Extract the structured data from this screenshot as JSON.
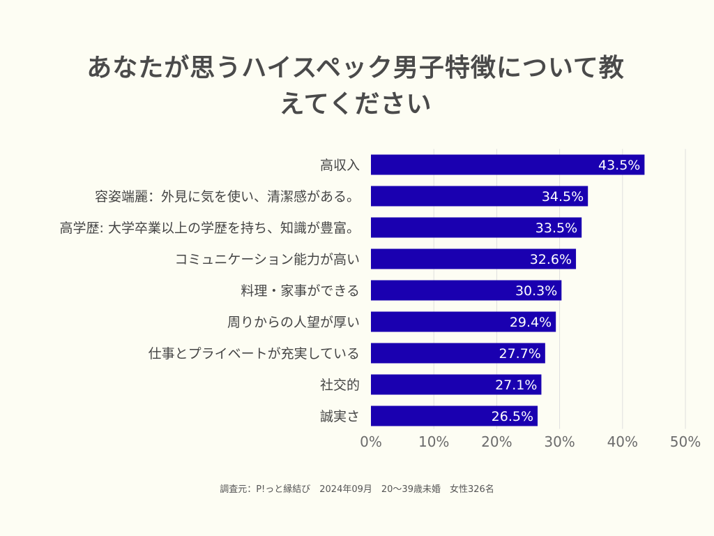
{
  "chart_data": {
    "type": "bar",
    "orientation": "horizontal",
    "title": "あなたが思うハイスペック男子特徴について教えてください",
    "categories": [
      "高収入",
      "容姿端麗：外見に気を使い、清潔感がある。",
      "高学歴: 大学卒業以上の学歴を持ち、知識が豊富。",
      "コミュニケーション能力が高い",
      "料理・家事ができる",
      "周りからの人望が厚い",
      "仕事とプライベートが充実している",
      "社交的",
      "誠実さ"
    ],
    "values": [
      43.5,
      34.5,
      33.5,
      32.6,
      30.3,
      29.4,
      27.7,
      27.1,
      26.5
    ],
    "value_labels": [
      "43.5%",
      "34.5%",
      "33.5%",
      "32.6%",
      "30.3%",
      "29.4%",
      "27.7%",
      "27.1%",
      "26.5%"
    ],
    "xlim": [
      0,
      50
    ],
    "x_ticks": [
      0,
      10,
      20,
      30,
      40,
      50
    ],
    "x_tick_labels": [
      "0%",
      "10%",
      "20%",
      "30%",
      "40%",
      "50%"
    ],
    "xlabel": "",
    "ylabel": "",
    "grid": true,
    "bar_color": "#1a00b0",
    "label_color": "#ffffff"
  },
  "footer": {
    "source": "調査元：P!っと縁結び　2024年09月　20〜39歳未婚　女性326名"
  }
}
